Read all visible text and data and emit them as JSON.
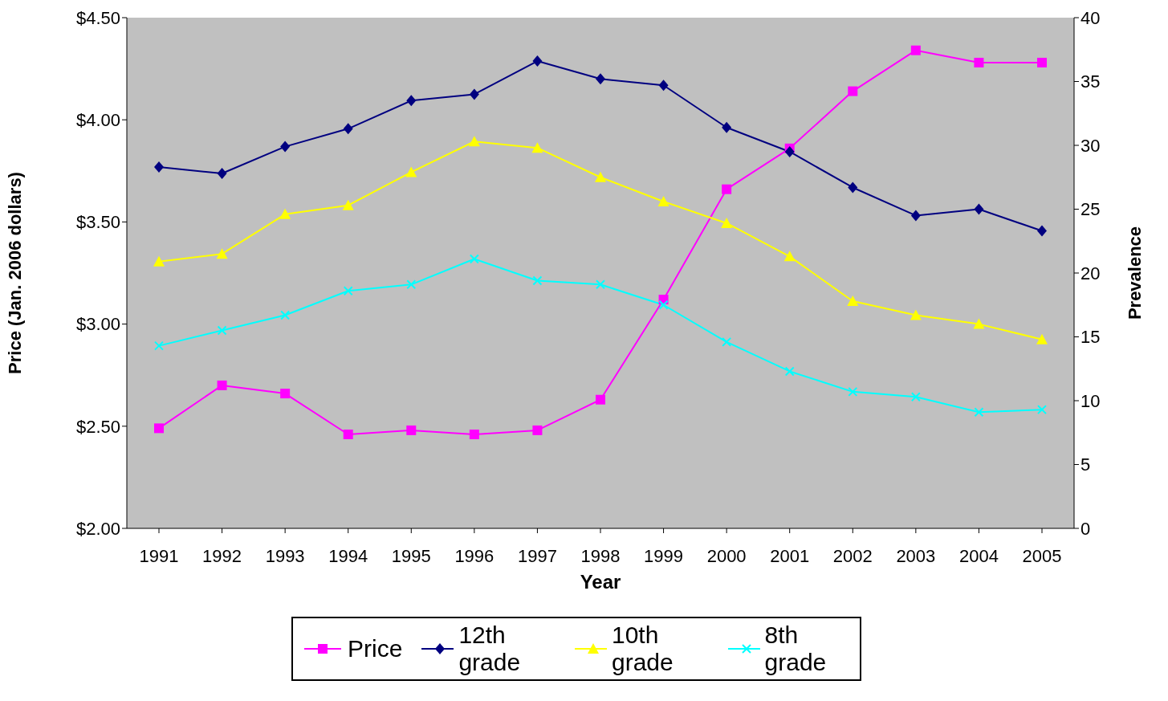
{
  "chart_data": {
    "type": "line",
    "xlabel": "Year",
    "ylabel": "Price (Jan. 2006 dollars)",
    "y2label": "Prevalence",
    "categories": [
      "1991",
      "1992",
      "1993",
      "1994",
      "1995",
      "1996",
      "1997",
      "1998",
      "1999",
      "2000",
      "2001",
      "2002",
      "2003",
      "2004",
      "2005"
    ],
    "series": [
      {
        "name": "Price",
        "color": "#ff00ff",
        "marker": "square",
        "values": [
          2.49,
          2.7,
          2.66,
          2.46,
          2.48,
          2.46,
          2.48,
          2.63,
          3.12,
          3.66,
          3.86,
          4.14,
          4.34,
          4.28,
          4.28
        ]
      },
      {
        "name": "12th grade",
        "color": "#000080",
        "marker": "diamond",
        "axis": "y2",
        "values": [
          28.3,
          27.8,
          29.9,
          31.3,
          33.5,
          34.0,
          36.6,
          35.2,
          34.7,
          31.4,
          29.5,
          26.7,
          24.5,
          25.0,
          23.3
        ]
      },
      {
        "name": "10th grade",
        "color": "#ffff00",
        "marker": "triangle",
        "axis": "y2",
        "values": [
          20.9,
          21.5,
          24.6,
          25.3,
          27.9,
          30.3,
          29.8,
          27.5,
          25.6,
          23.9,
          21.3,
          17.8,
          16.7,
          16.0,
          14.8
        ]
      },
      {
        "name": "8th grade",
        "color": "#00ffff",
        "marker": "cross",
        "axis": "y2",
        "values": [
          14.3,
          15.5,
          16.7,
          18.6,
          19.1,
          21.1,
          19.4,
          19.1,
          17.5,
          14.6,
          12.3,
          10.7,
          10.3,
          9.1,
          9.3
        ]
      }
    ],
    "ylim": [
      2,
      4.5
    ],
    "yticks": [
      {
        "value": 2,
        "label": "$2.00"
      },
      {
        "value": 2.5,
        "label": "$2.50"
      },
      {
        "value": 3,
        "label": "$3.00"
      },
      {
        "value": 3.5,
        "label": "$3.50"
      },
      {
        "value": 4,
        "label": "$4.00"
      },
      {
        "value": 4.5,
        "label": "$4.50"
      }
    ],
    "y2lim": [
      0,
      40
    ],
    "y2ticks": [
      0,
      5,
      10,
      15,
      20,
      25,
      30,
      35,
      40
    ],
    "grid": false,
    "legend": "bottom"
  }
}
